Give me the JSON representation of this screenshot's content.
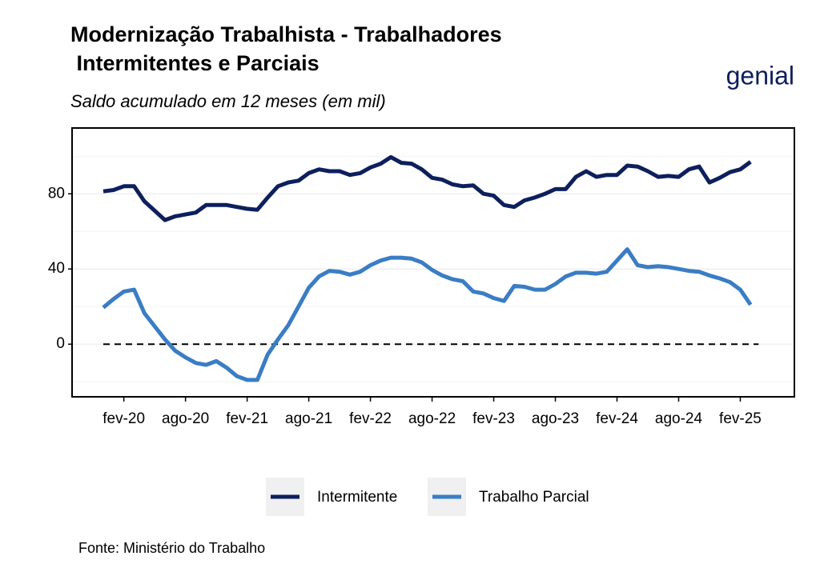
{
  "chart_data": {
    "type": "line",
    "title": [
      "Modernização Trabalhista - Trabalhadores",
      " Intermitentes e Parciais"
    ],
    "subtitle": "Saldo acumulado em 12 meses (em mil)",
    "logo": "genial",
    "source": "Fonte: Ministério do Trabalho",
    "categories": [
      null,
      null,
      "fev-20",
      null,
      null,
      null,
      null,
      null,
      "ago-20",
      null,
      null,
      null,
      null,
      null,
      "fev-21",
      null,
      null,
      null,
      null,
      null,
      "ago-21",
      null,
      null,
      null,
      null,
      null,
      "fev-22",
      null,
      null,
      null,
      null,
      null,
      "ago-22",
      null,
      null,
      null,
      null,
      null,
      "fev-23",
      null,
      null,
      null,
      null,
      null,
      "ago-23",
      null,
      null,
      null,
      null,
      null,
      "fev-24",
      null,
      null,
      null,
      null,
      null,
      "ago-24",
      null,
      null,
      null,
      null,
      null,
      "fev-25",
      null
    ],
    "series": [
      {
        "name": "Intermitente",
        "color": "#0d1f5c",
        "values": [
          81.3,
          82,
          84,
          84,
          76,
          71,
          66,
          68,
          69,
          70,
          74,
          74,
          74,
          73,
          72,
          71.5,
          78,
          84,
          86,
          87,
          91,
          93,
          92,
          92,
          90,
          91,
          94,
          96,
          99.5,
          96.5,
          96,
          93,
          88.5,
          87.5,
          85,
          84,
          84.5,
          80,
          79,
          74,
          73,
          76.5,
          78,
          80,
          82.5,
          82.5,
          89,
          92,
          89,
          90,
          90,
          95,
          94.5,
          92,
          89,
          89.5,
          89,
          93,
          94.5,
          86,
          88.5,
          91.5,
          93,
          97
        ]
      },
      {
        "name": "Trabalho Parcial",
        "color": "#3a7dc4",
        "values": [
          19.5,
          24,
          28,
          29,
          16.5,
          9.5,
          2.5,
          -3.5,
          -7,
          -10,
          -11,
          -9,
          -12.5,
          -17,
          -19,
          -19,
          -5.5,
          2.5,
          10,
          20,
          30,
          36,
          39,
          38.5,
          37,
          38.5,
          42,
          44.5,
          46,
          46,
          45.5,
          43.5,
          39.5,
          36.5,
          34.5,
          33.5,
          28,
          27,
          24.5,
          23,
          31,
          30.5,
          29,
          29,
          32,
          36,
          38,
          38,
          37.5,
          38.5,
          44.5,
          50.5,
          42,
          41,
          41.5,
          41,
          40,
          39,
          38.5,
          36.5,
          35,
          33,
          29,
          21
        ]
      }
    ],
    "ylim": [
      -28,
      115
    ],
    "yticks": [
      0,
      40,
      80
    ],
    "minor_yticks": [
      -20,
      20,
      60,
      100
    ],
    "grid": true,
    "hline": 0,
    "legend": "bottom"
  }
}
